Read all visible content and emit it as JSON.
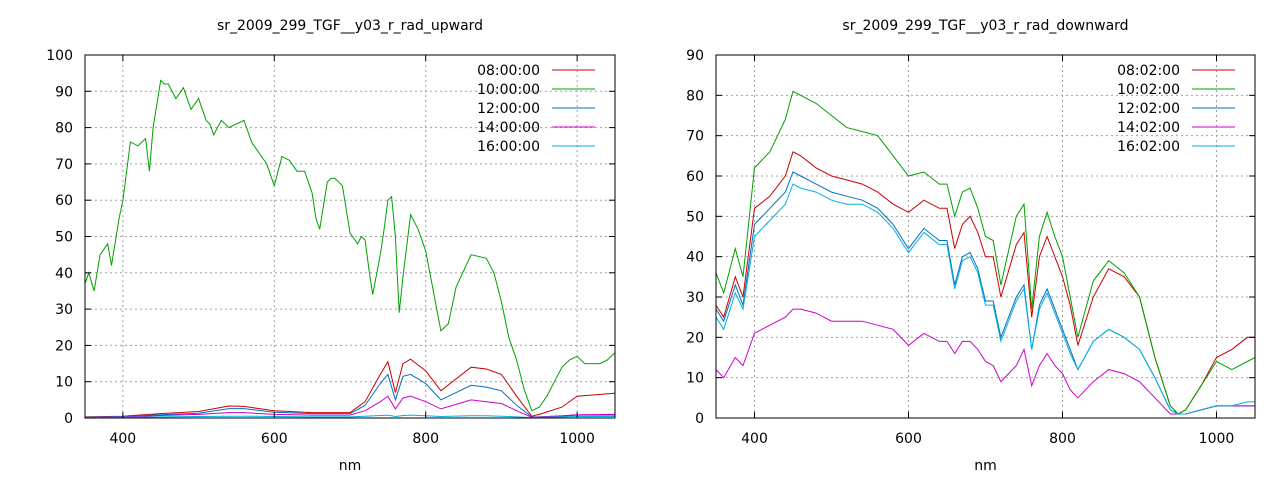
{
  "chart_data": [
    {
      "type": "line",
      "title": "sr_2009_299_TGF__y03_r_rad_upward",
      "xlabel": "nm",
      "ylabel": "",
      "xlim": [
        350,
        1050
      ],
      "ylim": [
        0,
        100
      ],
      "xticks": [
        400,
        600,
        800,
        1000
      ],
      "yticks": [
        0,
        10,
        20,
        30,
        40,
        50,
        60,
        70,
        80,
        90,
        100
      ],
      "grid": true,
      "legend_position": "top-right",
      "series": [
        {
          "name": "08:00:00",
          "color": "#cc0000",
          "x": [
            350,
            400,
            450,
            500,
            540,
            560,
            600,
            650,
            700,
            720,
            740,
            750,
            760,
            770,
            780,
            800,
            820,
            860,
            880,
            900,
            920,
            940,
            950,
            980,
            1000,
            1050
          ],
          "y": [
            0.3,
            0.5,
            1.2,
            1.8,
            3.3,
            3.2,
            2.0,
            1.5,
            1.5,
            4.5,
            12.0,
            15.5,
            7.0,
            15.0,
            16.2,
            13.0,
            7.5,
            14.0,
            13.5,
            12.0,
            6.0,
            0.5,
            1.0,
            3.0,
            6.0,
            6.8
          ]
        },
        {
          "name": "10:00:00",
          "color": "#00a000",
          "x": [
            350,
            355,
            362,
            370,
            380,
            385,
            395,
            400,
            410,
            420,
            430,
            435,
            440,
            450,
            455,
            460,
            470,
            480,
            490,
            500,
            510,
            515,
            520,
            525,
            530,
            540,
            550,
            560,
            570,
            580,
            590,
            600,
            605,
            610,
            620,
            630,
            640,
            650,
            655,
            660,
            670,
            675,
            680,
            690,
            700,
            710,
            715,
            720,
            725,
            730,
            740,
            745,
            750,
            755,
            760,
            765,
            770,
            780,
            790,
            800,
            810,
            820,
            830,
            840,
            860,
            880,
            890,
            900,
            910,
            920,
            930,
            940,
            950,
            960,
            970,
            980,
            990,
            1000,
            1010,
            1020,
            1030,
            1040,
            1045,
            1050
          ],
          "y": [
            37,
            40,
            35,
            45,
            48,
            42,
            55,
            60,
            76,
            75,
            77,
            68,
            80,
            93,
            92,
            92,
            88,
            91,
            85,
            88,
            82,
            81,
            78,
            80,
            82,
            80,
            81,
            82,
            76,
            73,
            70,
            64,
            68,
            72,
            71,
            68,
            68,
            62,
            55,
            52,
            65,
            66,
            66,
            64,
            51,
            48,
            50,
            49,
            41,
            34,
            45,
            52,
            60,
            61,
            50,
            29,
            39,
            56,
            52,
            46,
            35,
            24,
            26,
            36,
            45,
            44,
            40,
            32,
            22,
            16,
            8,
            2,
            3,
            6,
            10,
            14,
            16,
            17,
            15,
            15,
            15,
            16,
            17,
            18
          ]
        },
        {
          "name": "12:00:00",
          "color": "#0070c0",
          "x": [
            350,
            400,
            450,
            500,
            540,
            560,
            600,
            650,
            700,
            720,
            740,
            750,
            760,
            770,
            780,
            800,
            820,
            860,
            880,
            900,
            920,
            940,
            950,
            980,
            1000,
            1050
          ],
          "y": [
            0.2,
            0.4,
            0.9,
            1.3,
            2.6,
            2.6,
            1.6,
            1.2,
            1.2,
            3.5,
            9.5,
            12.0,
            5.0,
            11.5,
            12.0,
            9.5,
            5.0,
            9.0,
            8.5,
            7.5,
            3.5,
            0.3,
            0.3,
            0.5,
            0.8,
            0.8
          ]
        },
        {
          "name": "14:00:00",
          "color": "#cc00cc",
          "x": [
            350,
            400,
            450,
            500,
            540,
            560,
            600,
            650,
            700,
            720,
            740,
            750,
            760,
            770,
            780,
            800,
            820,
            860,
            880,
            900,
            920,
            940,
            950,
            980,
            1000,
            1050
          ],
          "y": [
            0.1,
            0.3,
            0.7,
            1.0,
            1.5,
            1.5,
            1.0,
            0.8,
            0.8,
            2.0,
            4.5,
            6.0,
            2.5,
            5.5,
            6.0,
            4.5,
            2.5,
            5.0,
            4.5,
            4.0,
            2.0,
            0.2,
            0.3,
            0.6,
            0.9,
            1.0
          ]
        },
        {
          "name": "16:00:00",
          "color": "#00b0e0",
          "x": [
            350,
            400,
            450,
            500,
            540,
            560,
            600,
            650,
            700,
            720,
            740,
            750,
            760,
            770,
            780,
            800,
            820,
            860,
            880,
            900,
            920,
            940,
            950,
            980,
            1000,
            1050
          ],
          "y": [
            0.1,
            0.2,
            0.3,
            0.4,
            0.5,
            0.5,
            0.4,
            0.3,
            0.3,
            0.5,
            0.7,
            0.8,
            0.4,
            0.7,
            0.8,
            0.6,
            0.4,
            0.6,
            0.6,
            0.5,
            0.3,
            0.1,
            0.2,
            0.3,
            0.4,
            0.4
          ]
        }
      ]
    },
    {
      "type": "line",
      "title": "sr_2009_299_TGF__y03_r_rad_downward",
      "xlabel": "nm",
      "ylabel": "",
      "xlim": [
        350,
        1050
      ],
      "ylim": [
        0,
        90
      ],
      "xticks": [
        400,
        600,
        800,
        1000
      ],
      "yticks": [
        0,
        10,
        20,
        30,
        40,
        50,
        60,
        70,
        80,
        90
      ],
      "grid": true,
      "legend_position": "top-right",
      "series": [
        {
          "name": "08:02:00",
          "color": "#cc0000",
          "x": [
            350,
            360,
            375,
            385,
            400,
            420,
            440,
            450,
            460,
            480,
            500,
            520,
            540,
            560,
            580,
            600,
            620,
            640,
            650,
            660,
            670,
            680,
            690,
            700,
            710,
            720,
            740,
            750,
            760,
            770,
            780,
            790,
            800,
            810,
            820,
            840,
            860,
            880,
            900,
            920,
            940,
            950,
            960,
            980,
            1000,
            1020,
            1040,
            1050
          ],
          "y": [
            28,
            25,
            35,
            30,
            52,
            55,
            60,
            66,
            65,
            62,
            60,
            59,
            58,
            56,
            53,
            51,
            54,
            52,
            52,
            42,
            48,
            50,
            46,
            40,
            40,
            30,
            43,
            46,
            25,
            40,
            45,
            40,
            35,
            28,
            18,
            30,
            37,
            35,
            30,
            15,
            3,
            1,
            2,
            8,
            15,
            17,
            20,
            20
          ]
        },
        {
          "name": "10:02:00",
          "color": "#00a000",
          "x": [
            350,
            360,
            375,
            385,
            400,
            420,
            440,
            450,
            460,
            480,
            500,
            520,
            540,
            560,
            580,
            600,
            620,
            640,
            650,
            660,
            670,
            680,
            690,
            700,
            710,
            720,
            740,
            750,
            760,
            770,
            780,
            790,
            800,
            810,
            820,
            840,
            860,
            880,
            900,
            920,
            940,
            950,
            960,
            980,
            1000,
            1020,
            1040,
            1050
          ],
          "y": [
            36,
            31,
            42,
            35,
            62,
            66,
            74,
            81,
            80,
            78,
            75,
            72,
            71,
            70,
            65,
            60,
            61,
            58,
            58,
            50,
            56,
            57,
            52,
            45,
            44,
            33,
            50,
            53,
            27,
            45,
            51,
            45,
            40,
            30,
            20,
            34,
            39,
            36,
            30,
            15,
            3,
            1,
            2,
            8,
            14,
            12,
            14,
            15
          ]
        },
        {
          "name": "12:02:00",
          "color": "#0070c0",
          "x": [
            350,
            360,
            375,
            385,
            400,
            420,
            440,
            450,
            460,
            480,
            500,
            520,
            540,
            560,
            580,
            600,
            620,
            640,
            650,
            660,
            670,
            680,
            690,
            700,
            710,
            720,
            740,
            750,
            760,
            770,
            780,
            790,
            800,
            810,
            820,
            840,
            860,
            880,
            900,
            920,
            940,
            950,
            960,
            980,
            1000,
            1020,
            1040,
            1050
          ],
          "y": [
            27,
            24,
            33,
            28,
            48,
            52,
            56,
            61,
            60,
            58,
            56,
            55,
            54,
            52,
            48,
            42,
            47,
            44,
            44,
            33,
            40,
            41,
            37,
            29,
            29,
            20,
            30,
            33,
            17,
            28,
            32,
            27,
            22,
            17,
            12,
            19,
            22,
            20,
            17,
            10,
            2,
            1,
            1,
            2,
            3,
            3,
            3,
            3
          ]
        },
        {
          "name": "14:02:00",
          "color": "#cc00cc",
          "x": [
            350,
            360,
            375,
            385,
            400,
            420,
            440,
            450,
            460,
            480,
            500,
            520,
            540,
            560,
            580,
            600,
            620,
            640,
            650,
            660,
            670,
            680,
            690,
            700,
            710,
            720,
            740,
            750,
            760,
            770,
            780,
            790,
            800,
            810,
            820,
            840,
            860,
            880,
            900,
            920,
            940,
            950,
            960,
            980,
            1000,
            1020,
            1040,
            1050
          ],
          "y": [
            12,
            10,
            15,
            13,
            21,
            23,
            25,
            27,
            27,
            26,
            24,
            24,
            24,
            23,
            22,
            18,
            21,
            19,
            19,
            16,
            19,
            19,
            17,
            14,
            13,
            9,
            13,
            17,
            8,
            13,
            16,
            13,
            11,
            7,
            5,
            9,
            12,
            11,
            9,
            5,
            1,
            1,
            1,
            2,
            3,
            3,
            3,
            3
          ]
        },
        {
          "name": "16:02:00",
          "color": "#00b0e0",
          "x": [
            350,
            360,
            375,
            385,
            400,
            420,
            440,
            450,
            460,
            480,
            500,
            520,
            540,
            560,
            580,
            600,
            620,
            640,
            650,
            660,
            670,
            680,
            690,
            700,
            710,
            720,
            740,
            750,
            760,
            770,
            780,
            790,
            800,
            810,
            820,
            840,
            860,
            880,
            900,
            920,
            940,
            950,
            960,
            980,
            1000,
            1020,
            1040,
            1050
          ],
          "y": [
            25,
            22,
            31,
            27,
            45,
            49,
            53,
            58,
            57,
            56,
            54,
            53,
            53,
            51,
            47,
            41,
            46,
            43,
            43,
            32,
            39,
            40,
            36,
            28,
            28,
            19,
            29,
            32,
            17,
            27,
            31,
            26,
            21,
            16,
            12,
            19,
            22,
            20,
            17,
            10,
            2,
            1,
            1,
            2,
            3,
            3,
            4,
            4
          ]
        }
      ]
    }
  ]
}
